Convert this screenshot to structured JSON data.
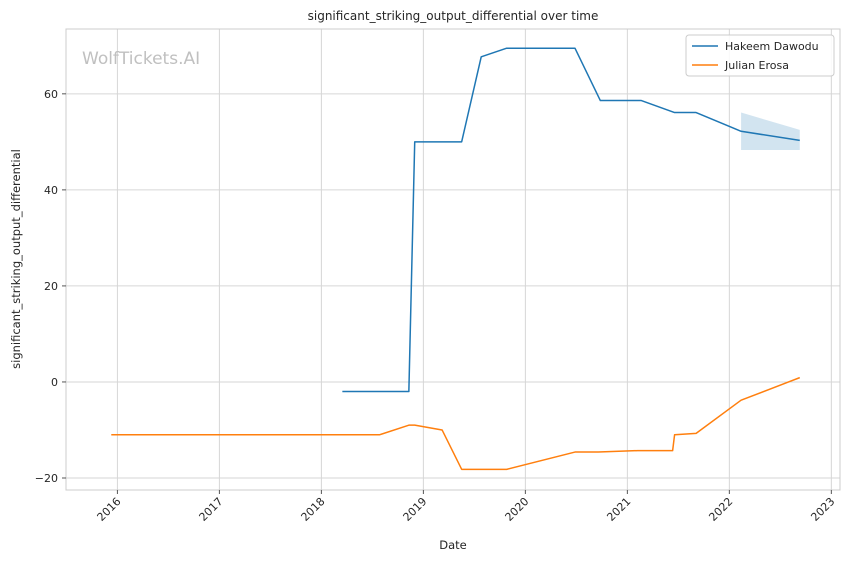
{
  "watermark": "WolfTickets.AI",
  "chart_data": {
    "type": "line",
    "title": "significant_striking_output_differential over time",
    "xlabel": "Date",
    "ylabel": "significant_striking_output_differential",
    "x_ticks": [
      "2016",
      "2017",
      "2018",
      "2019",
      "2020",
      "2021",
      "2022",
      "2023"
    ],
    "y_ticks": [
      -20,
      0,
      20,
      40,
      60
    ],
    "xlim": [
      "2015-07-01",
      "2023-02-01"
    ],
    "ylim": [
      -22.5,
      73.5
    ],
    "grid": true,
    "legend_position": "top-right",
    "series": [
      {
        "name": "Hakeem Dawodu",
        "color": "#1f77b4",
        "points": [
          [
            "2018-03-17",
            -2.0
          ],
          [
            "2018-11-10",
            -2.0
          ],
          [
            "2018-12-01",
            50.0
          ],
          [
            "2019-05-18",
            50.0
          ],
          [
            "2019-07-27",
            67.7
          ],
          [
            "2019-10-26",
            69.5
          ],
          [
            "2020-06-27",
            69.5
          ],
          [
            "2020-09-26",
            58.6
          ],
          [
            "2021-02-20",
            58.6
          ],
          [
            "2021-06-19",
            56.1
          ],
          [
            "2021-09-04",
            56.1
          ],
          [
            "2022-02-12",
            52.2
          ],
          [
            "2022-09-10",
            50.3
          ]
        ],
        "band": {
          "x": [
            "2022-02-12",
            "2022-09-10"
          ],
          "upper": [
            56.1,
            52.5
          ],
          "lower": [
            48.3,
            48.3
          ]
        }
      },
      {
        "name": "Julian Erosa",
        "color": "#ff7f0e",
        "points": [
          [
            "2015-12-10",
            -11.0
          ],
          [
            "2018-07-28",
            -11.0
          ],
          [
            "2018-11-10",
            -9.0
          ],
          [
            "2018-12-01",
            -9.0
          ],
          [
            "2019-03-09",
            -10.0
          ],
          [
            "2019-05-18",
            -18.2
          ],
          [
            "2019-10-26",
            -18.2
          ],
          [
            "2020-06-27",
            -14.6
          ],
          [
            "2020-09-19",
            -14.6
          ],
          [
            "2021-02-06",
            -14.3
          ],
          [
            "2021-06-12",
            -14.3
          ],
          [
            "2021-06-19",
            -11.0
          ],
          [
            "2021-09-04",
            -10.7
          ],
          [
            "2022-02-12",
            -3.8
          ],
          [
            "2022-09-10",
            0.9
          ]
        ]
      }
    ]
  }
}
